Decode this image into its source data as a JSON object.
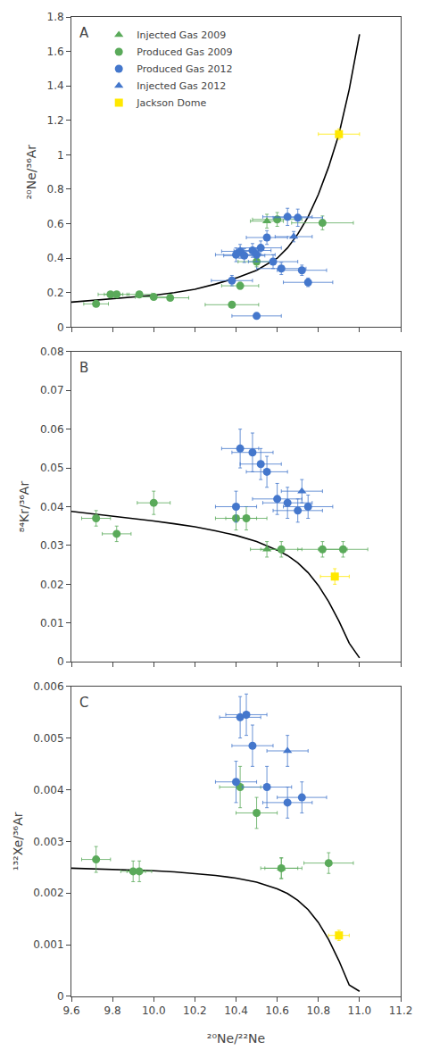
{
  "chart_data": [
    {
      "type": "scatter",
      "ylabel": "²⁰Ne/³⁶Ar",
      "annotations": [
        {
          "text": "A"
        }
      ],
      "xlim": [
        9.6,
        11.2
      ],
      "xticks": [
        9.6,
        9.8,
        10,
        10.2,
        10.4,
        10.6,
        10.8,
        11,
        11.2
      ],
      "ylim": [
        0,
        1.8
      ],
      "yticks": [
        0,
        0.2,
        0.4,
        0.6,
        0.8,
        1,
        1.2,
        1.4,
        1.6,
        1.8
      ],
      "tick_labels": "y",
      "grid": false,
      "legend": "upper left",
      "series": [
        {
          "type": "line",
          "color": "#000000",
          "x": [
            9.6,
            9.7,
            9.8,
            9.9,
            10.0,
            10.1,
            10.2,
            10.3,
            10.4,
            10.5,
            10.6,
            10.65,
            10.7,
            10.75,
            10.8,
            10.85,
            10.9,
            10.95,
            11.0
          ],
          "values": [
            0.145,
            0.155,
            0.165,
            0.175,
            0.185,
            0.2,
            0.22,
            0.25,
            0.285,
            0.33,
            0.4,
            0.46,
            0.54,
            0.64,
            0.77,
            0.93,
            1.12,
            1.38,
            1.7
          ]
        },
        {
          "name": "Injected Gas 2009",
          "color": "#5aaa5a",
          "marker": "triangle-up",
          "x": [
            10.55
          ],
          "values": [
            0.615
          ],
          "xerr": [
            0.08
          ],
          "yerr": [
            0.04
          ]
        },
        {
          "name": "Produced Gas 2009",
          "color": "#5aaa5a",
          "marker": "circle",
          "x": [
            9.72,
            9.79,
            9.82,
            9.93,
            10.0,
            10.08,
            10.38,
            10.42,
            10.5,
            10.6,
            10.82
          ],
          "values": [
            0.135,
            0.19,
            0.19,
            0.19,
            0.175,
            0.17,
            0.13,
            0.24,
            0.38,
            0.625,
            0.605
          ],
          "xerr": [
            0.06,
            0.06,
            0.06,
            0.06,
            0.09,
            0.09,
            0.13,
            0.09,
            0.09,
            0.12,
            0.15
          ],
          "yerr": [
            0.015,
            0.015,
            0.015,
            0.015,
            0.015,
            0.015,
            0.015,
            0.02,
            0.03,
            0.04,
            0.04
          ]
        },
        {
          "name": "Produced Gas 2012",
          "color": "#4477cc",
          "marker": "circle",
          "x": [
            10.38,
            10.4,
            10.42,
            10.44,
            10.48,
            10.5,
            10.52,
            10.55,
            10.58,
            10.62,
            10.65,
            10.7,
            10.72,
            10.75,
            10.5
          ],
          "values": [
            0.27,
            0.42,
            0.44,
            0.415,
            0.445,
            0.42,
            0.46,
            0.52,
            0.38,
            0.34,
            0.64,
            0.635,
            0.33,
            0.26,
            0.065
          ],
          "xerr": [
            0.1,
            0.1,
            0.09,
            0.1,
            0.09,
            0.09,
            0.1,
            0.1,
            0.12,
            0.12,
            0.12,
            0.12,
            0.12,
            0.12,
            0.12
          ],
          "yerr": [
            0.03,
            0.04,
            0.04,
            0.04,
            0.04,
            0.04,
            0.04,
            0.04,
            0.04,
            0.035,
            0.05,
            0.05,
            0.03,
            0.025,
            0.01
          ]
        },
        {
          "name": "Injected Gas 2012",
          "color": "#4477cc",
          "marker": "triangle-up",
          "x": [
            10.68
          ],
          "values": [
            0.525
          ],
          "xerr": [
            0.09
          ],
          "yerr": [
            0.03
          ]
        },
        {
          "name": "Jackson Dome",
          "color": "#FFE800",
          "marker": "square",
          "x": [
            10.9
          ],
          "values": [
            1.12
          ],
          "xerr": [
            0.1
          ],
          "yerr": [
            0.03
          ]
        }
      ]
    },
    {
      "type": "scatter",
      "ylabel": "⁸⁴Kr/³⁶Ar",
      "annotations": [
        {
          "text": "B"
        }
      ],
      "xlim": [
        9.6,
        11.2
      ],
      "xticks": [
        9.6,
        9.8,
        10,
        10.2,
        10.4,
        10.6,
        10.8,
        11,
        11.2
      ],
      "ylim": [
        0,
        0.08
      ],
      "yticks": [
        0,
        0.01,
        0.02,
        0.03,
        0.04,
        0.05,
        0.06,
        0.07,
        0.08
      ],
      "tick_labels": "y",
      "grid": false,
      "series": [
        {
          "type": "line",
          "color": "#000000",
          "x": [
            9.6,
            9.7,
            9.8,
            9.9,
            10.0,
            10.1,
            10.2,
            10.3,
            10.4,
            10.5,
            10.6,
            10.65,
            10.7,
            10.75,
            10.8,
            10.85,
            10.9,
            10.95,
            11.0
          ],
          "values": [
            0.0388,
            0.0382,
            0.0376,
            0.037,
            0.0363,
            0.0356,
            0.0348,
            0.0338,
            0.0326,
            0.031,
            0.0288,
            0.0274,
            0.0255,
            0.023,
            0.0197,
            0.0155,
            0.0105,
            0.0048,
            0.001
          ]
        },
        {
          "name": "Injected Gas 2009",
          "color": "#5aaa5a",
          "marker": "triangle-up",
          "x": [
            10.55
          ],
          "values": [
            0.029
          ],
          "xerr": [
            0.08
          ],
          "yerr": [
            0.002
          ]
        },
        {
          "name": "Produced Gas 2009",
          "color": "#5aaa5a",
          "marker": "circle",
          "x": [
            9.72,
            9.82,
            10.0,
            10.4,
            10.45,
            10.62,
            10.82,
            10.92
          ],
          "values": [
            0.037,
            0.033,
            0.041,
            0.037,
            0.037,
            0.029,
            0.029,
            0.029
          ],
          "xerr": [
            0.07,
            0.07,
            0.08,
            0.1,
            0.1,
            0.1,
            0.12,
            0.12
          ],
          "yerr": [
            0.002,
            0.002,
            0.003,
            0.003,
            0.003,
            0.002,
            0.002,
            0.002
          ]
        },
        {
          "name": "Produced Gas 2012",
          "color": "#4477cc",
          "marker": "circle",
          "x": [
            10.4,
            10.42,
            10.48,
            10.52,
            10.55,
            10.6,
            10.65,
            10.7,
            10.75
          ],
          "values": [
            0.04,
            0.055,
            0.054,
            0.051,
            0.049,
            0.042,
            0.041,
            0.039,
            0.04
          ],
          "xerr": [
            0.1,
            0.09,
            0.1,
            0.1,
            0.1,
            0.12,
            0.12,
            0.12,
            0.12
          ],
          "yerr": [
            0.004,
            0.005,
            0.005,
            0.004,
            0.004,
            0.004,
            0.004,
            0.003,
            0.003
          ]
        },
        {
          "name": "Injected Gas 2012",
          "color": "#4477cc",
          "marker": "triangle-up",
          "x": [
            10.72
          ],
          "values": [
            0.044
          ],
          "xerr": [
            0.1
          ],
          "yerr": [
            0.003
          ]
        },
        {
          "name": "Jackson Dome",
          "color": "#FFE800",
          "marker": "square",
          "x": [
            10.88
          ],
          "values": [
            0.022
          ],
          "xerr": [
            0.07
          ],
          "yerr": [
            0.002
          ]
        }
      ]
    },
    {
      "type": "scatter",
      "ylabel": "¹³²Xe/³⁶Ar",
      "xlabel": "²⁰Ne/²²Ne",
      "annotations": [
        {
          "text": "C"
        }
      ],
      "xlim": [
        9.6,
        11.2
      ],
      "xticks": [
        9.6,
        9.8,
        {
          "value": 10,
          "label": "10.0"
        },
        10.2,
        10.4,
        10.6,
        10.8,
        {
          "value": 11,
          "label": "11.0"
        },
        11.2
      ],
      "ylim": [
        0,
        0.006
      ],
      "yticks": [
        0,
        0.001,
        0.002,
        0.003,
        0.004,
        0.005,
        0.006
      ],
      "grid": false,
      "series": [
        {
          "type": "line",
          "color": "#000000",
          "x": [
            9.6,
            9.7,
            9.8,
            9.9,
            10.0,
            10.1,
            10.2,
            10.3,
            10.4,
            10.5,
            10.6,
            10.65,
            10.7,
            10.75,
            10.8,
            10.85,
            10.9,
            10.95,
            11.0
          ],
          "values": [
            0.00248,
            0.00247,
            0.00246,
            0.00244,
            0.00243,
            0.00241,
            0.00238,
            0.00234,
            0.00229,
            0.00221,
            0.00208,
            0.00199,
            0.00186,
            0.00168,
            0.00143,
            0.0011,
            0.00069,
            0.00022,
            0.0001
          ]
        },
        {
          "name": "Injected Gas 2009",
          "color": "#5aaa5a",
          "marker": "triangle-up",
          "x": [
            10.62
          ],
          "values": [
            0.00248
          ],
          "xerr": [
            0.08
          ],
          "yerr": [
            0.0002
          ]
        },
        {
          "name": "Produced Gas 2009",
          "color": "#5aaa5a",
          "marker": "circle",
          "x": [
            9.72,
            9.9,
            9.93,
            10.42,
            10.5,
            10.62,
            10.85
          ],
          "values": [
            0.00265,
            0.00242,
            0.00242,
            0.00405,
            0.00355,
            0.00248,
            0.00258
          ],
          "xerr": [
            0.07,
            0.06,
            0.06,
            0.1,
            0.1,
            0.1,
            0.12
          ],
          "yerr": [
            0.00025,
            0.0002,
            0.0002,
            0.0004,
            0.0003,
            0.0002,
            0.0002
          ]
        },
        {
          "name": "Produced Gas 2012",
          "color": "#4477cc",
          "marker": "circle",
          "x": [
            10.4,
            10.42,
            10.45,
            10.48,
            10.55,
            10.65,
            10.72
          ],
          "values": [
            0.00415,
            0.0054,
            0.00545,
            0.00485,
            0.00405,
            0.00375,
            0.00385
          ],
          "xerr": [
            0.1,
            0.1,
            0.1,
            0.1,
            0.12,
            0.12,
            0.12
          ],
          "yerr": [
            0.0004,
            0.0004,
            0.0004,
            0.0004,
            0.0004,
            0.0003,
            0.0003
          ]
        },
        {
          "name": "Injected Gas 2012",
          "color": "#4477cc",
          "marker": "triangle-up",
          "x": [
            10.65
          ],
          "values": [
            0.00475
          ],
          "xerr": [
            0.1
          ],
          "yerr": [
            0.0003
          ]
        },
        {
          "name": "Jackson Dome",
          "color": "#FFE800",
          "marker": "square",
          "x": [
            10.9
          ],
          "values": [
            0.00118
          ],
          "xerr": [
            0.05
          ],
          "yerr": [
            0.0001
          ]
        }
      ]
    }
  ]
}
